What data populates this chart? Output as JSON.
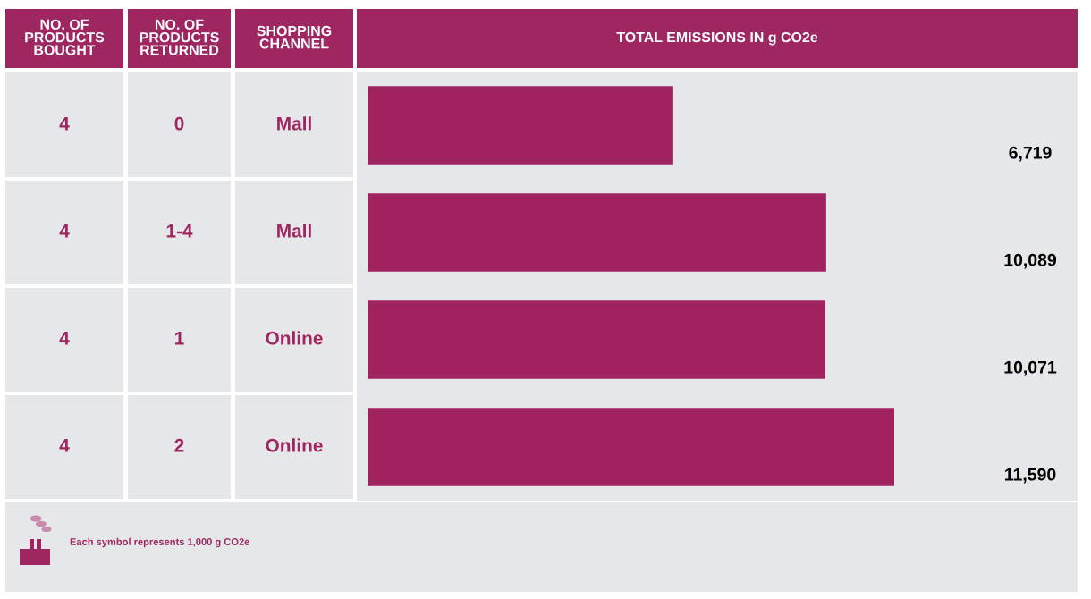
{
  "chart_data": {
    "type": "bar",
    "orientation": "horizontal",
    "xlabel": "TOTAL EMISSIONS IN g CO2e",
    "ylabel": "SHOPPING CHANNEL",
    "categories": [
      "Mall",
      "Mall",
      "Online",
      "Online"
    ],
    "values": [
      6719,
      10089,
      10071,
      11590
    ],
    "color": "#a0235f",
    "value_labels": [
      "6,719",
      "10,089",
      "10,071",
      "11,590"
    ],
    "tick_labels": false,
    "annotations": [
      "NO. OF PRODUCTS BOUGHT",
      "NO. OF PRODUCTS RETURNED",
      "4",
      "0",
      "4",
      "1-4",
      "4",
      "1",
      "4",
      "2",
      "Each symbol represents 1,000 g CO2e"
    ]
  }
}
